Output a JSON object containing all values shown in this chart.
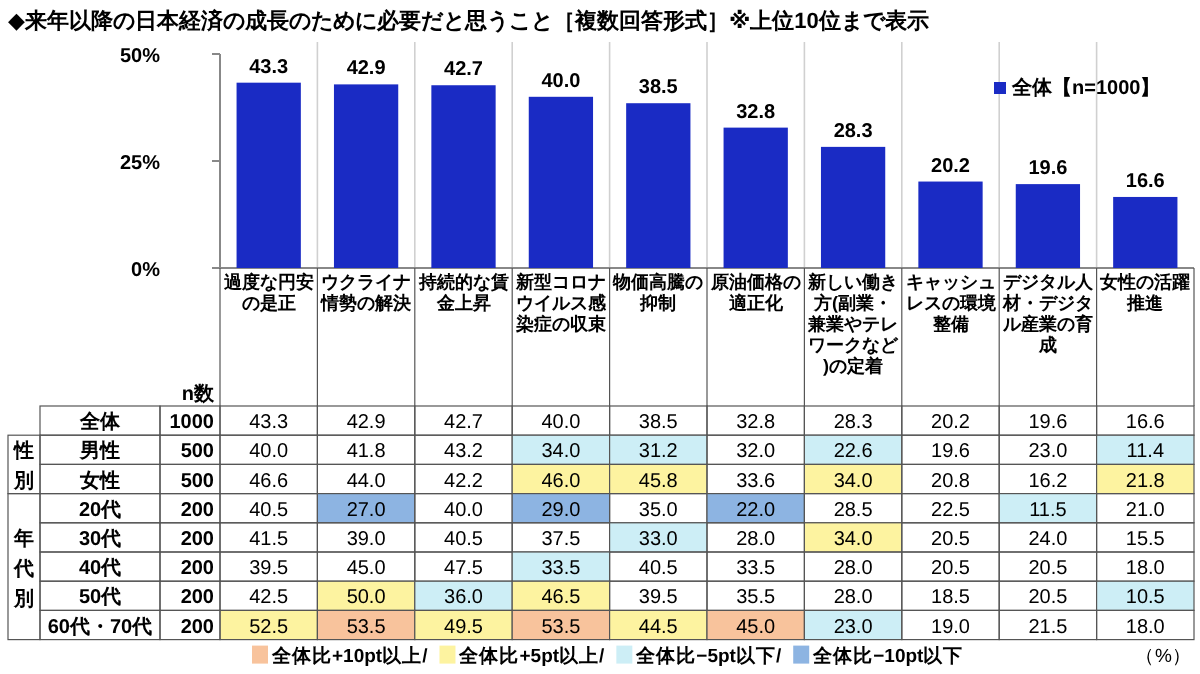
{
  "chart_data": [
    {
      "type": "bar",
      "title": "◆来年以降の日本経済の成長のために必要だと思うこと［複数回答形式］※上位10位まで表示",
      "categories": [
        "過度な円安の是正",
        "ウクライナ情勢の解決",
        "持続的な賃金上昇",
        "新型コロナウイルス感染症の収束",
        "物価高騰の抑制",
        "原油価格の適正化",
        "新しい働き方(副業・兼業やテレワークなど)の定着",
        "キャッシュレスの環境整備",
        "デジタル人材・デジタル産業の育成",
        "女性の活躍推進"
      ],
      "series": [
        {
          "name": "全体【n=1000】",
          "color": "#1a2bc4",
          "values": [
            43.3,
            42.9,
            42.7,
            40.0,
            38.5,
            32.8,
            28.3,
            20.2,
            19.6,
            16.6
          ]
        }
      ],
      "ylim": [
        0,
        50
      ],
      "yticks": [
        {
          "value": 0,
          "label": "0%"
        },
        {
          "value": 25,
          "label": "25%"
        },
        {
          "value": 50,
          "label": "50%"
        }
      ],
      "value_labels": [
        "43.3",
        "42.9",
        "42.7",
        "40.0",
        "38.5",
        "32.8",
        "28.3",
        "20.2",
        "19.6",
        "16.6"
      ],
      "legend": "top right"
    },
    {
      "type": "heatmap",
      "categories": [
        null,
        null,
        null,
        null,
        null,
        null,
        null,
        null,
        null,
        null
      ],
      "y_categories": [
        "全体",
        "男性",
        "女性",
        "20代",
        "30代",
        "40代",
        "50代",
        "60代・70代"
      ],
      "y2_categories": [
        "1000",
        "500",
        "500",
        "200",
        "200",
        "200",
        "200",
        "200"
      ],
      "cells": [
        [
          43.3,
          42.9,
          42.7,
          40.0,
          38.5,
          32.8,
          28.3,
          20.2,
          19.6,
          16.6
        ],
        [
          40.0,
          41.8,
          43.2,
          34.0,
          31.2,
          32.0,
          22.6,
          19.6,
          23.0,
          11.4
        ],
        [
          46.6,
          44.0,
          42.2,
          46.0,
          45.8,
          33.6,
          34.0,
          20.8,
          16.2,
          21.8
        ],
        [
          40.5,
          27.0,
          40.0,
          29.0,
          35.0,
          22.0,
          28.5,
          22.5,
          11.5,
          21.0
        ],
        [
          41.5,
          39.0,
          40.5,
          37.5,
          33.0,
          28.0,
          34.0,
          20.5,
          24.0,
          15.5
        ],
        [
          39.5,
          45.0,
          47.5,
          33.5,
          40.5,
          33.5,
          28.0,
          20.5,
          20.5,
          18.0
        ],
        [
          42.5,
          50.0,
          36.0,
          46.5,
          39.5,
          35.5,
          28.0,
          18.5,
          20.5,
          10.5
        ],
        [
          52.5,
          53.5,
          49.5,
          53.5,
          44.5,
          45.0,
          23.0,
          19.0,
          21.5,
          18.0
        ]
      ],
      "cell_labels": [
        [
          "43.3",
          "42.9",
          "42.7",
          "40.0",
          "38.5",
          "32.8",
          "28.3",
          "20.2",
          "19.6",
          "16.6"
        ],
        [
          "40.0",
          "41.8",
          "43.2",
          "34.0",
          "31.2",
          "32.0",
          "22.6",
          "19.6",
          "23.0",
          "11.4"
        ],
        [
          "46.6",
          "44.0",
          "42.2",
          "46.0",
          "45.8",
          "33.6",
          "34.0",
          "20.8",
          "16.2",
          "21.8"
        ],
        [
          "40.5",
          "27.0",
          "40.0",
          "29.0",
          "35.0",
          "22.0",
          "28.5",
          "22.5",
          "11.5",
          "21.0"
        ],
        [
          "41.5",
          "39.0",
          "40.5",
          "37.5",
          "33.0",
          "28.0",
          "34.0",
          "20.5",
          "24.0",
          "15.5"
        ],
        [
          "39.5",
          "45.0",
          "47.5",
          "33.5",
          "40.5",
          "33.5",
          "28.0",
          "20.5",
          "20.5",
          "18.0"
        ],
        [
          "42.5",
          "50.0",
          "36.0",
          "46.5",
          "39.5",
          "35.5",
          "28.0",
          "18.5",
          "20.5",
          "10.5"
        ],
        [
          "52.5",
          "53.5",
          "49.5",
          "53.5",
          "44.5",
          "45.0",
          "23.0",
          "19.0",
          "21.5",
          "18.0"
        ]
      ],
      "colors": [
        [
          null,
          null,
          null,
          null,
          null,
          null,
          null,
          null,
          null,
          null
        ],
        [
          null,
          null,
          null,
          "#cdeef6",
          "#cdeef6",
          null,
          "#cdeef6",
          null,
          null,
          "#cdeef6"
        ],
        [
          null,
          null,
          null,
          "#fdf3a0",
          "#fdf3a0",
          null,
          "#fdf3a0",
          null,
          null,
          "#fdf3a0"
        ],
        [
          null,
          "#8db4e2",
          null,
          "#8db4e2",
          null,
          "#8db4e2",
          null,
          null,
          "#cdeef6",
          null
        ],
        [
          null,
          null,
          null,
          null,
          "#cdeef6",
          null,
          "#fdf3a0",
          null,
          null,
          null
        ],
        [
          null,
          null,
          null,
          "#cdeef6",
          null,
          null,
          null,
          null,
          null,
          null
        ],
        [
          null,
          "#fdf3a0",
          "#cdeef6",
          "#fdf3a0",
          null,
          null,
          null,
          null,
          null,
          "#cdeef6"
        ],
        [
          "#fdf3a0",
          "#f8c39c",
          "#fdf3a0",
          "#f8c39c",
          "#fdf3a0",
          "#f8c39c",
          "#cdeef6",
          null,
          null,
          null
        ]
      ],
      "series": [
        {
          "name": "全体比+10pt以上/",
          "color": "#f8c39c",
          "values": [
            null,
            null,
            null,
            null,
            null,
            null,
            null,
            null,
            null,
            null
          ]
        },
        {
          "name": "全体比+5pt以上/",
          "color": "#fdf3a0",
          "values": [
            null,
            null,
            null,
            null,
            null,
            null,
            null,
            null,
            null,
            null
          ]
        },
        {
          "name": "全体比−5pt以下/",
          "color": "#cdeef6",
          "values": [
            null,
            null,
            null,
            null,
            null,
            null,
            null,
            null,
            null,
            null
          ]
        },
        {
          "name": "全体比−10pt以下",
          "color": "#8db4e2",
          "values": [
            null,
            null,
            null,
            null,
            null,
            null,
            null,
            null,
            null,
            null
          ]
        }
      ],
      "annotations": [
        "n数",
        "性別",
        "年代別",
        "（%）"
      ]
    }
  ]
}
